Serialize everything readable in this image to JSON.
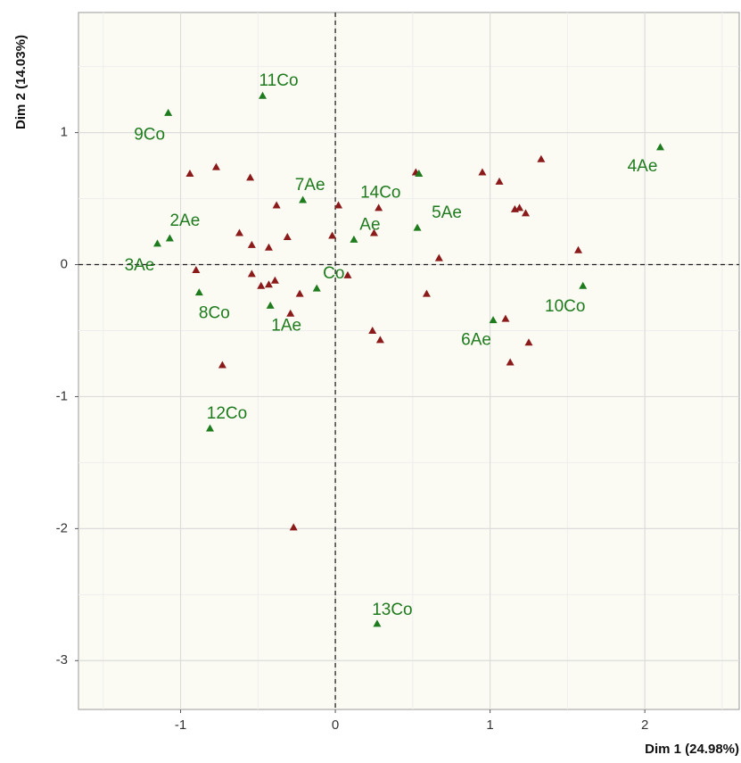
{
  "chart_data": {
    "type": "scatter",
    "x_label": "Dim 1 (24.98%)",
    "y_label": "Dim 2 (14.03%)",
    "xlim": [
      -1.66,
      2.61
    ],
    "ylim": [
      -3.37,
      1.91
    ],
    "xticks": [
      -1,
      0,
      1,
      2
    ],
    "yticks": [
      -3,
      -2,
      -1,
      0,
      1
    ],
    "xminor": [
      -1.5,
      -0.5,
      0.5,
      1.5,
      2.5
    ],
    "yminor": [
      -2.5,
      -1.5,
      -0.5,
      0.5,
      1.5
    ],
    "grid": true,
    "hline": 0,
    "vline": 0,
    "marker": "triangle",
    "series": [
      {
        "color": "#8b1a1a",
        "x": [
          -0.94,
          -0.77,
          -0.55,
          -0.38,
          -0.62,
          -0.31,
          -0.54,
          -0.43,
          -0.02,
          0.02,
          0.28,
          0.25,
          0.52,
          0.95,
          1.06,
          1.33,
          1.16,
          1.19,
          1.23,
          1.57,
          0.67,
          -0.9,
          -0.54,
          -0.48,
          -0.43,
          -0.39,
          -0.23,
          0.08,
          -0.29,
          0.59,
          0.24,
          0.29,
          1.1,
          1.13,
          1.25,
          -0.73,
          -0.27
        ],
        "values": [
          0.69,
          0.74,
          0.66,
          0.45,
          0.24,
          0.21,
          0.15,
          0.13,
          0.22,
          0.45,
          0.43,
          0.24,
          0.7,
          0.7,
          0.63,
          0.8,
          0.42,
          0.43,
          0.39,
          0.11,
          0.05,
          -0.04,
          -0.07,
          -0.16,
          -0.15,
          -0.12,
          -0.22,
          -0.08,
          -0.37,
          -0.22,
          -0.5,
          -0.57,
          -0.41,
          -0.74,
          -0.59,
          -0.76,
          -1.99
        ]
      },
      {
        "color": "#1e7b1e",
        "labels": [
          "11Co",
          "9Co",
          "4Ae",
          "7Ae",
          "14Co",
          "5Ae",
          "Ae",
          "2Ae",
          "3Ae",
          "Co",
          "8Co",
          "1Ae",
          "10Co",
          "6Ae",
          "12Co",
          "13Co"
        ],
        "x": [
          -0.47,
          -1.08,
          2.1,
          -0.21,
          0.54,
          0.53,
          0.12,
          -1.07,
          -1.15,
          -0.12,
          -0.88,
          -0.42,
          1.6,
          1.02,
          -0.81,
          0.27
        ],
        "values": [
          1.28,
          1.15,
          0.89,
          0.49,
          0.69,
          0.28,
          0.19,
          0.2,
          0.16,
          -0.18,
          -0.21,
          -0.31,
          -0.16,
          -0.42,
          -1.24,
          -2.72
        ]
      }
    ]
  }
}
